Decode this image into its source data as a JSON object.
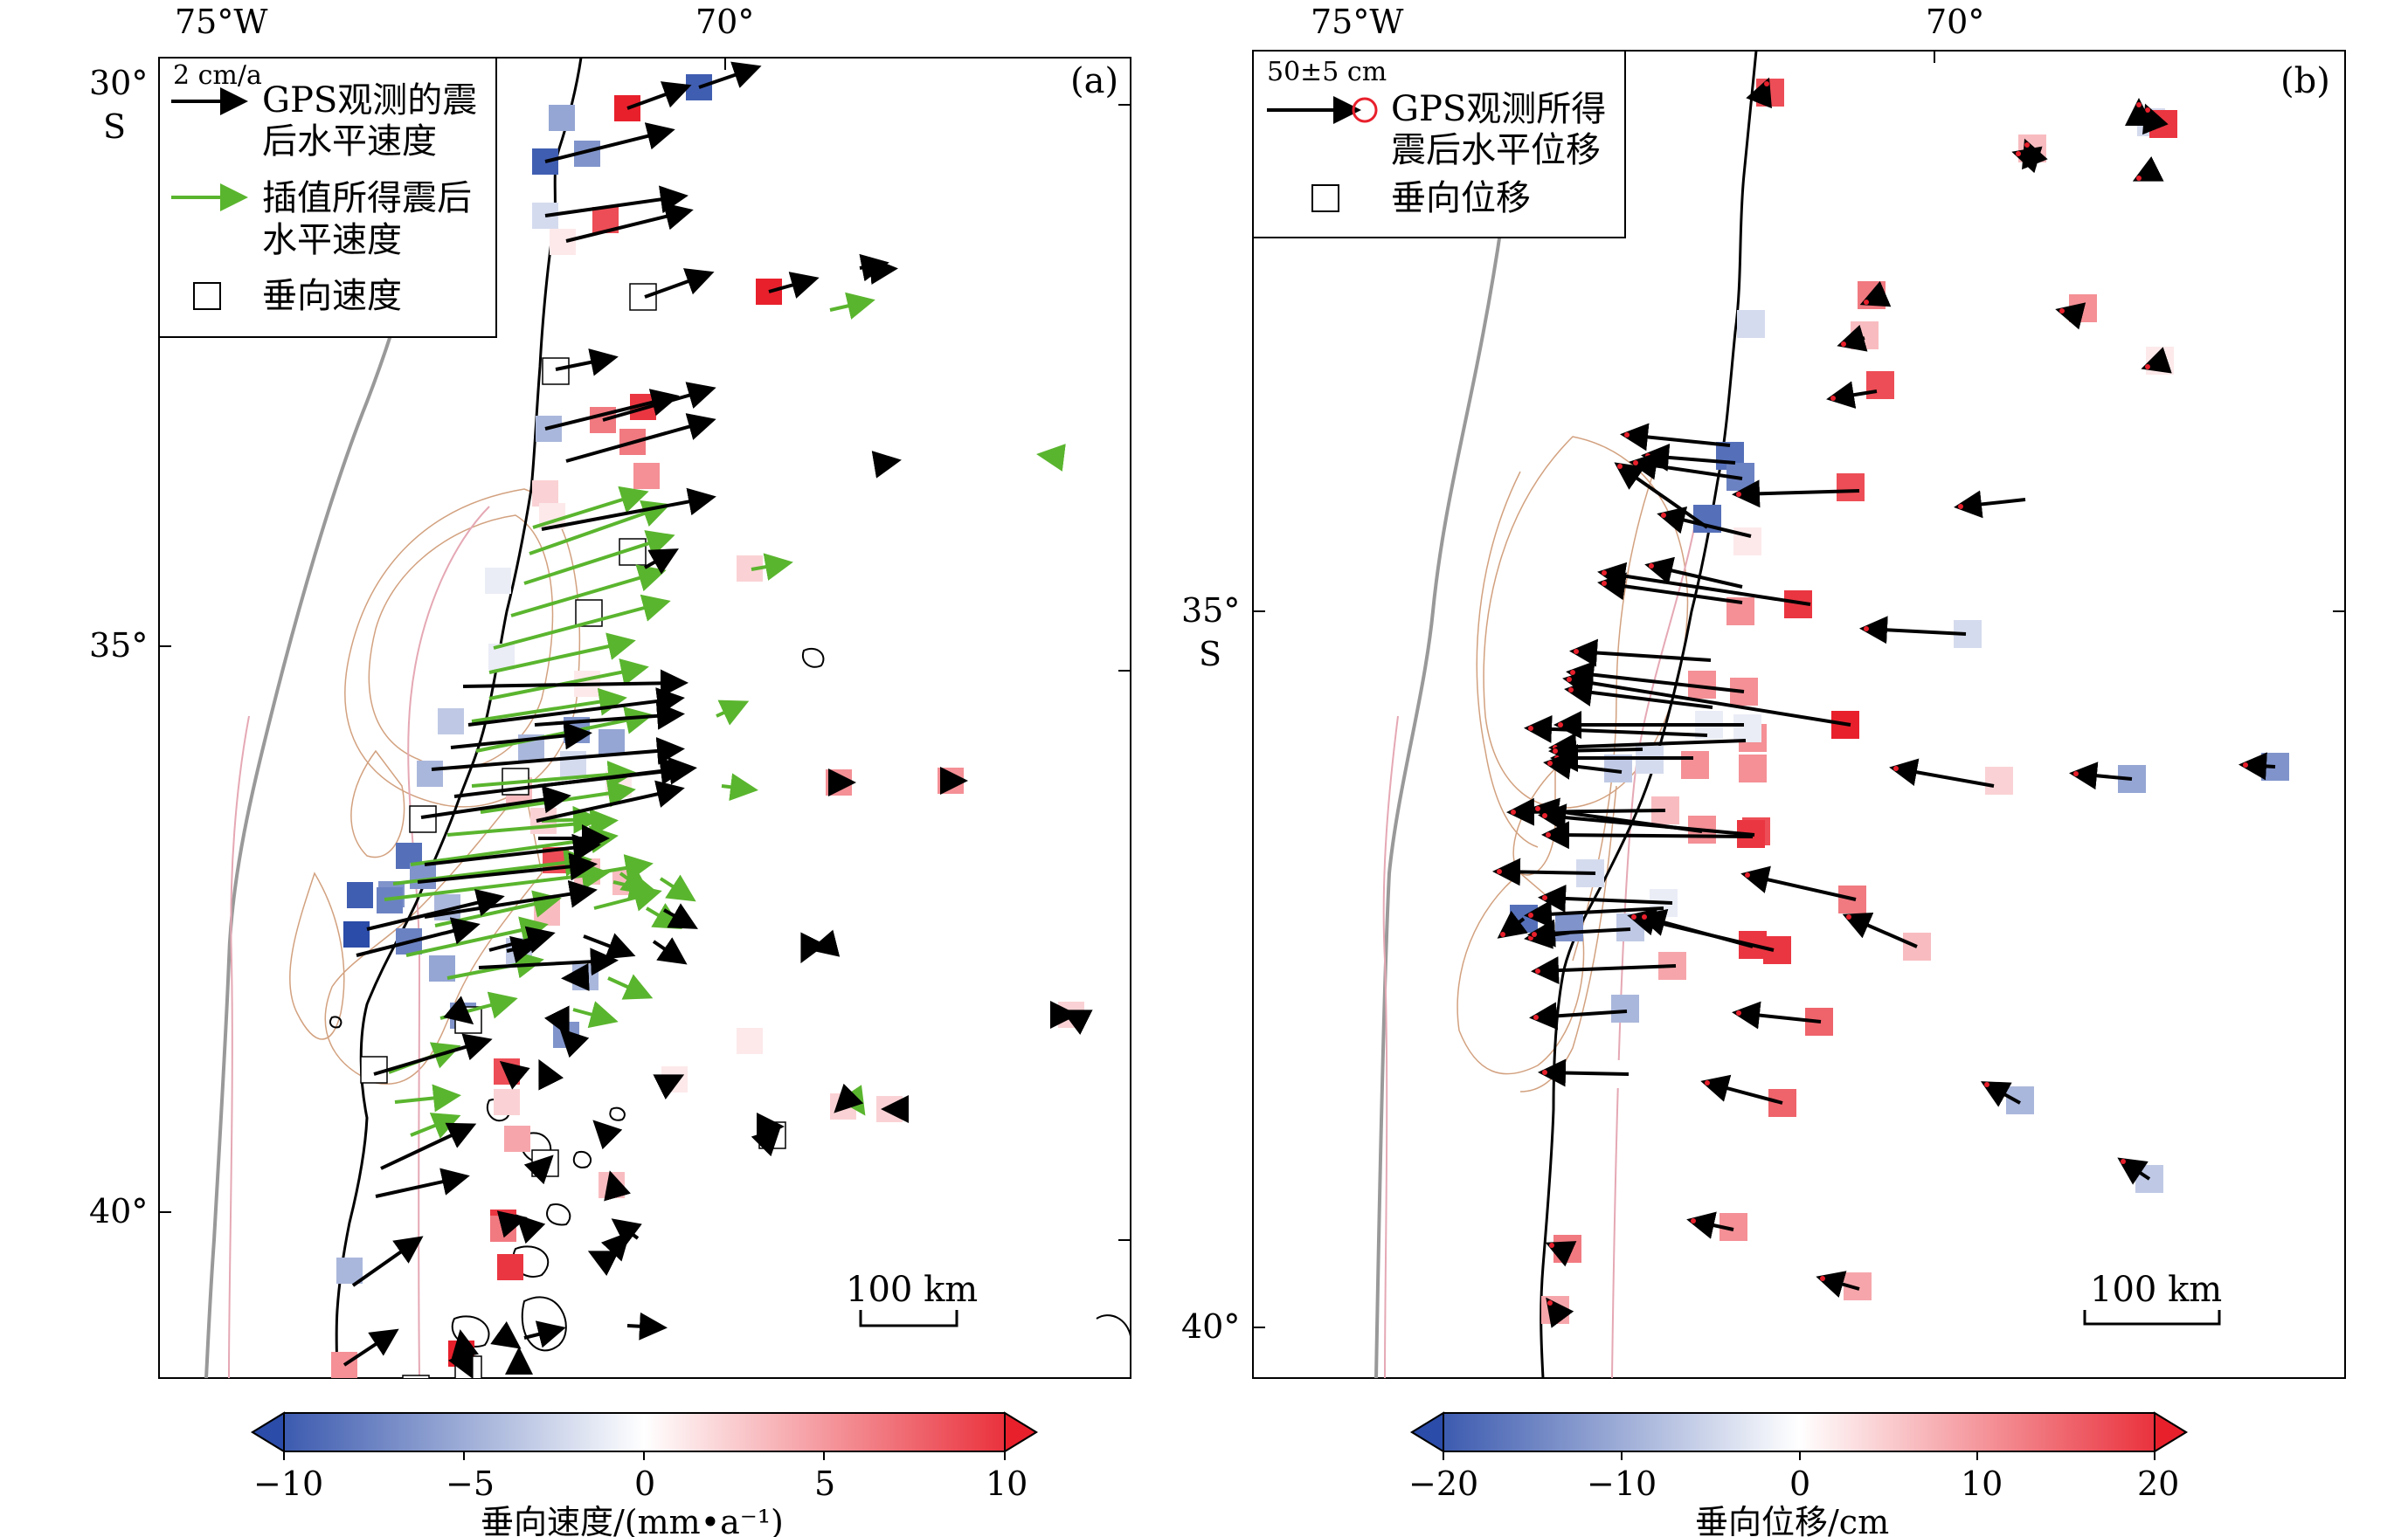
{
  "panels": [
    {
      "id": "a",
      "label": "(a)",
      "lon_labels": [
        "75°W",
        "70°"
      ],
      "lat_labels": [
        "30°",
        "S",
        "35°",
        "40°"
      ],
      "legend": {
        "scale_label": "2 cm/a",
        "gps_label_line1": "GPS观测的震",
        "gps_label_line2": "后水平速度",
        "interp_label_line1": "插值所得震后",
        "interp_label_line2": "水平速度",
        "vertical_label": "垂向速度"
      },
      "scalebar": "100 km",
      "colorbar": {
        "ticks": [
          "−10",
          "−5",
          "0",
          "5",
          "10"
        ],
        "title": "垂向速度/(mm•a⁻¹)",
        "range": [
          -10,
          10
        ]
      }
    },
    {
      "id": "b",
      "label": "(b)",
      "lon_labels": [
        "75°W",
        "70°"
      ],
      "lat_labels": [
        "35°",
        "S",
        "40°"
      ],
      "legend": {
        "scale_label": "50±5 cm",
        "gps_label_line1": "GPS观测所得",
        "gps_label_line2": "震后水平位移",
        "vertical_label": "垂向位移"
      },
      "scalebar": "100 km",
      "colorbar": {
        "ticks": [
          "−20",
          "−10",
          "0",
          "10",
          "20"
        ],
        "title": "垂向位移/cm",
        "range": [
          -20,
          20
        ]
      }
    }
  ],
  "colors": {
    "negative": "#2b4ca8",
    "positive": "#e8202c",
    "neutral": "#ffffff",
    "gps_arrow": "#000000",
    "interp_arrow": "#5ab52e",
    "trench": "#888888",
    "contour": "#c88a60"
  }
}
